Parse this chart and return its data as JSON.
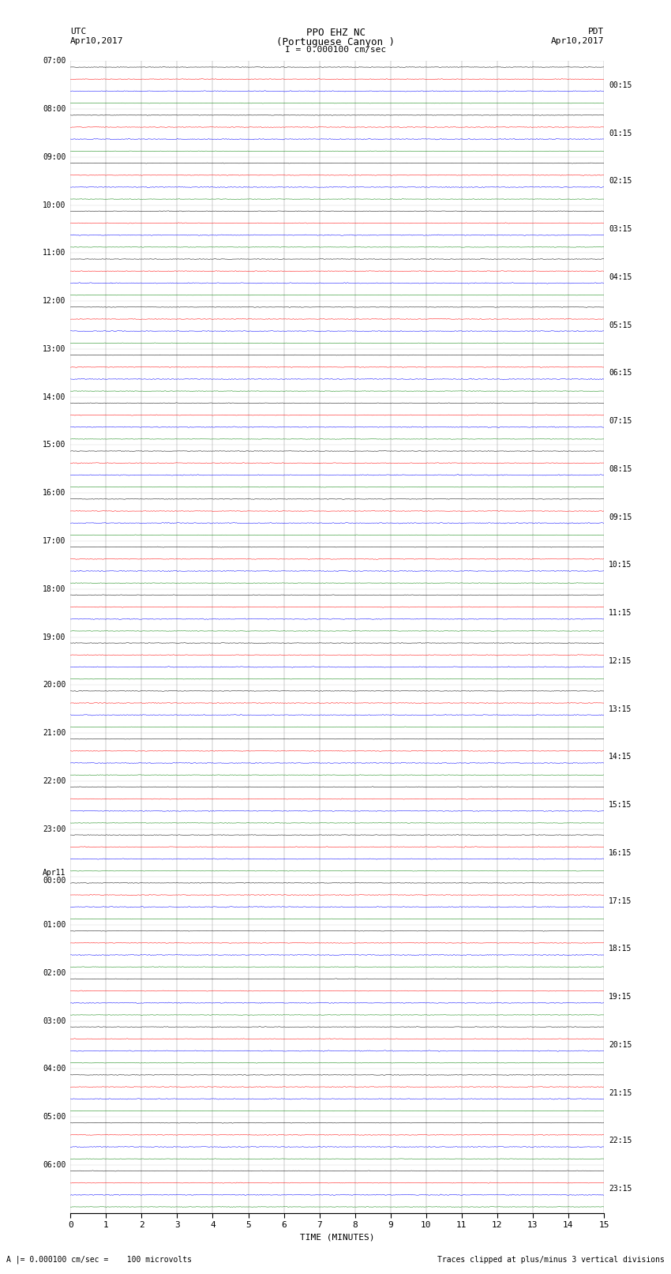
{
  "title_line1": "PPO EHZ NC",
  "title_line2": "(Portuguese Canyon )",
  "title_line3": "I = 0.000100 cm/sec",
  "left_header1": "UTC",
  "left_header2": "Apr10,2017",
  "right_header1": "PDT",
  "right_header2": "Apr10,2017",
  "xlabel": "TIME (MINUTES)",
  "footer_left": "A |= 0.000100 cm/sec =    100 microvolts",
  "footer_right": "Traces clipped at plus/minus 3 vertical divisions",
  "trace_colors": [
    "black",
    "red",
    "blue",
    "green"
  ],
  "bg_color": "white",
  "figwidth": 8.5,
  "figheight": 16.13,
  "dpi": 100,
  "num_hours": 24,
  "traces_per_hour": 4,
  "minutes_per_row": 15,
  "left_labels_utc": [
    [
      "07:00",
      false
    ],
    [
      "08:00",
      false
    ],
    [
      "09:00",
      false
    ],
    [
      "10:00",
      false
    ],
    [
      "11:00",
      false
    ],
    [
      "12:00",
      false
    ],
    [
      "13:00",
      false
    ],
    [
      "14:00",
      false
    ],
    [
      "15:00",
      false
    ],
    [
      "16:00",
      false
    ],
    [
      "17:00",
      false
    ],
    [
      "18:00",
      false
    ],
    [
      "19:00",
      false
    ],
    [
      "20:00",
      false
    ],
    [
      "21:00",
      false
    ],
    [
      "22:00",
      false
    ],
    [
      "23:00",
      false
    ],
    [
      "Apr11",
      true
    ],
    [
      "01:00",
      false
    ],
    [
      "02:00",
      false
    ],
    [
      "03:00",
      false
    ],
    [
      "04:00",
      false
    ],
    [
      "05:00",
      false
    ],
    [
      "06:00",
      false
    ]
  ],
  "left_labels_apr11_time": "00:00",
  "right_labels_pdt": [
    "00:15",
    "01:15",
    "02:15",
    "03:15",
    "04:15",
    "05:15",
    "06:15",
    "07:15",
    "08:15",
    "09:15",
    "10:15",
    "11:15",
    "12:15",
    "13:15",
    "14:15",
    "15:15",
    "16:15",
    "17:15",
    "18:15",
    "19:15",
    "20:15",
    "21:15",
    "22:15",
    "23:15"
  ],
  "noise_amp_black": 0.018,
  "noise_amp_red": 0.022,
  "noise_amp_blue": 0.028,
  "noise_amp_green": 0.015,
  "seed": 42
}
